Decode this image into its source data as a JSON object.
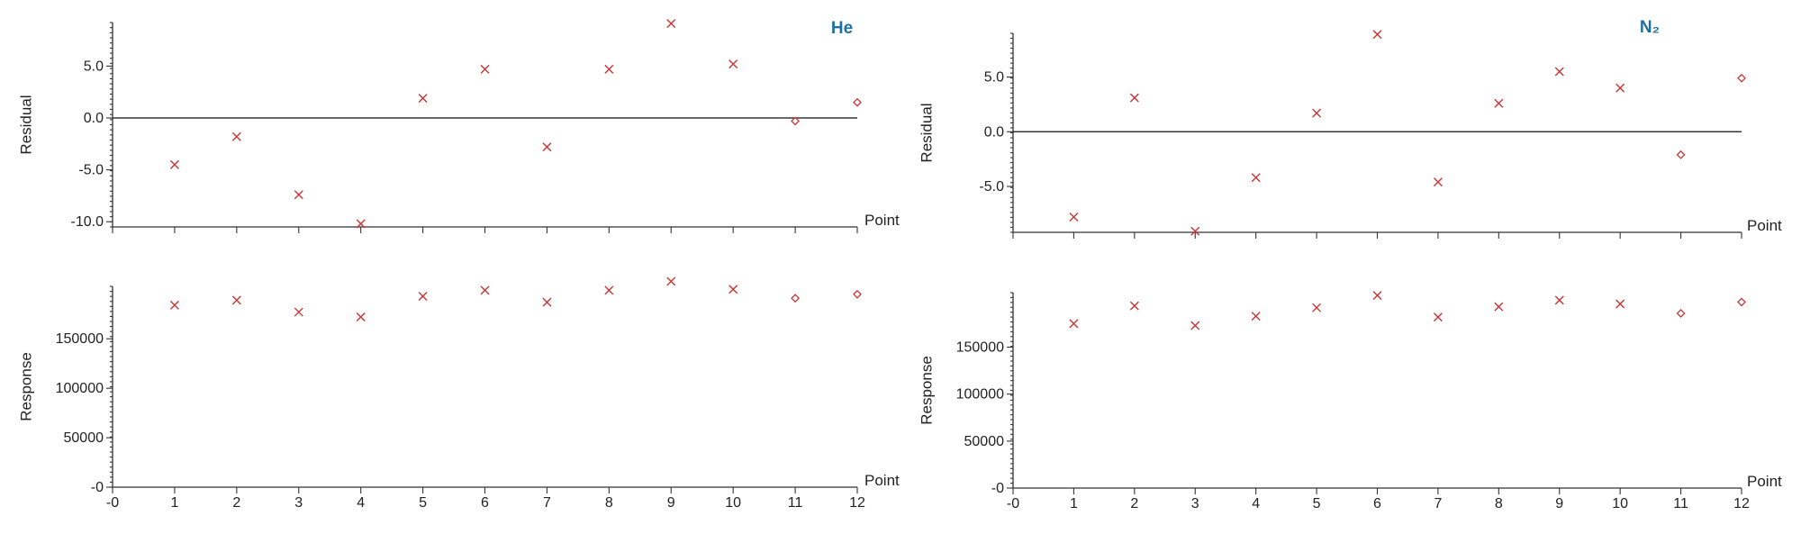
{
  "colors": {
    "marker": "#cc3333",
    "title": "#1f6fa3",
    "axis": "#333333"
  },
  "chart_data": [
    {
      "type": "scatter",
      "title": "He",
      "ylabel": "Residual",
      "xlabel": "Point",
      "xlim": [
        0,
        12
      ],
      "ylim": [
        -10.5,
        9.2
      ],
      "yticks": [
        {
          "v": -10,
          "label": "-10.0"
        },
        {
          "v": -5,
          "label": "-5.0"
        },
        {
          "v": 0,
          "label": "0.0"
        },
        {
          "v": 5,
          "label": "5.0"
        }
      ],
      "zero_line": true,
      "x": [
        1,
        2,
        3,
        4,
        5,
        6,
        7,
        8,
        9,
        10,
        11,
        12
      ],
      "y": [
        -4.5,
        -1.8,
        -7.4,
        -10.2,
        1.9,
        4.7,
        -2.8,
        4.7,
        9.1,
        5.2,
        -0.3,
        1.5
      ],
      "markers": [
        "x",
        "x",
        "x",
        "x",
        "x",
        "x",
        "x",
        "x",
        "x",
        "x",
        "diamond",
        "diamond"
      ]
    },
    {
      "type": "scatter",
      "title": "N₂",
      "ylabel": "Residual",
      "xlabel": "Point",
      "xlim": [
        0,
        12
      ],
      "ylim": [
        -9.2,
        9.0
      ],
      "yticks": [
        {
          "v": -5,
          "label": "-5.0"
        },
        {
          "v": 0,
          "label": "0.0"
        },
        {
          "v": 5,
          "label": "5.0"
        }
      ],
      "zero_line": true,
      "x": [
        1,
        2,
        3,
        4,
        5,
        6,
        7,
        8,
        9,
        10,
        11,
        12
      ],
      "y": [
        -7.8,
        3.1,
        -9.1,
        -4.2,
        1.7,
        8.9,
        -4.6,
        2.6,
        5.5,
        4.0,
        -2.1,
        4.9
      ],
      "markers": [
        "x",
        "x",
        "x",
        "x",
        "x",
        "x",
        "x",
        "x",
        "x",
        "x",
        "diamond",
        "diamond"
      ]
    },
    {
      "type": "scatter",
      "ylabel": "Response",
      "xlabel": "Point",
      "xlim": [
        0,
        12
      ],
      "ylim": [
        0,
        203000
      ],
      "yticks": [
        {
          "v": 0,
          "label": "-0"
        },
        {
          "v": 50000,
          "label": "50000"
        },
        {
          "v": 100000,
          "label": "100000"
        },
        {
          "v": 150000,
          "label": "150000"
        }
      ],
      "xticks": [
        {
          "v": 0,
          "label": "-0"
        },
        {
          "v": 1,
          "label": "1"
        },
        {
          "v": 2,
          "label": "2"
        },
        {
          "v": 3,
          "label": "3"
        },
        {
          "v": 4,
          "label": "4"
        },
        {
          "v": 5,
          "label": "5"
        },
        {
          "v": 6,
          "label": "6"
        },
        {
          "v": 7,
          "label": "7"
        },
        {
          "v": 8,
          "label": "8"
        },
        {
          "v": 9,
          "label": "9"
        },
        {
          "v": 10,
          "label": "10"
        },
        {
          "v": 11,
          "label": "11"
        },
        {
          "v": 12,
          "label": "12"
        }
      ],
      "x": [
        1,
        2,
        3,
        4,
        5,
        6,
        7,
        8,
        9,
        10,
        11,
        12
      ],
      "y": [
        184000,
        189000,
        177000,
        172000,
        193000,
        199000,
        187000,
        199000,
        208000,
        200000,
        191000,
        195000
      ],
      "markers": [
        "x",
        "x",
        "x",
        "x",
        "x",
        "x",
        "x",
        "x",
        "x",
        "x",
        "diamond",
        "diamond"
      ]
    },
    {
      "type": "scatter",
      "ylabel": "Response",
      "xlabel": "Point",
      "xlim": [
        0,
        12
      ],
      "ylim": [
        0,
        208000
      ],
      "yticks": [
        {
          "v": 0,
          "label": "-0"
        },
        {
          "v": 50000,
          "label": "50000"
        },
        {
          "v": 100000,
          "label": "100000"
        },
        {
          "v": 150000,
          "label": "150000"
        }
      ],
      "xticks": [
        {
          "v": 0,
          "label": "-0"
        },
        {
          "v": 1,
          "label": "1"
        },
        {
          "v": 2,
          "label": "2"
        },
        {
          "v": 3,
          "label": "3"
        },
        {
          "v": 4,
          "label": "4"
        },
        {
          "v": 5,
          "label": "5"
        },
        {
          "v": 6,
          "label": "6"
        },
        {
          "v": 7,
          "label": "7"
        },
        {
          "v": 8,
          "label": "8"
        },
        {
          "v": 9,
          "label": "9"
        },
        {
          "v": 10,
          "label": "10"
        },
        {
          "v": 11,
          "label": "11"
        },
        {
          "v": 12,
          "label": "12"
        }
      ],
      "x": [
        1,
        2,
        3,
        4,
        5,
        6,
        7,
        8,
        9,
        10,
        11,
        12
      ],
      "y": [
        175000,
        194000,
        173000,
        183000,
        192000,
        205000,
        182000,
        193000,
        200000,
        196000,
        186000,
        198000
      ],
      "markers": [
        "x",
        "x",
        "x",
        "x",
        "x",
        "x",
        "x",
        "x",
        "x",
        "x",
        "diamond",
        "diamond"
      ]
    }
  ]
}
